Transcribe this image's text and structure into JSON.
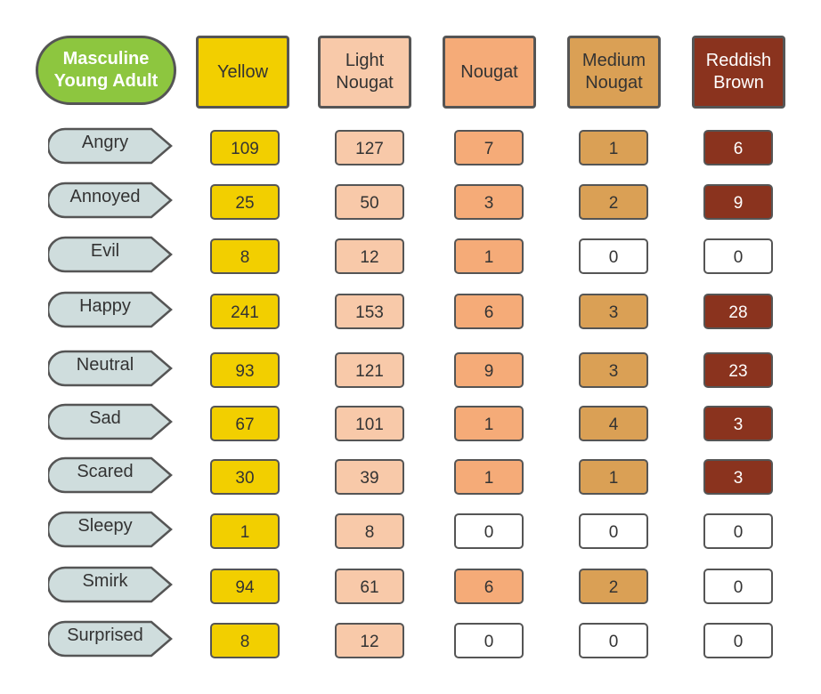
{
  "title": "Masculine\nYoung Adult",
  "columns": [
    {
      "label": "Yellow",
      "color": "#f2cf00",
      "dark_text": false
    },
    {
      "label": "Light\nNougat",
      "color": "#f8c9a9",
      "dark_text": false
    },
    {
      "label": "Nougat",
      "color": "#f5ab78",
      "dark_text": false
    },
    {
      "label": "Medium\nNougat",
      "color": "#daa055",
      "dark_text": false
    },
    {
      "label": "Reddish\nBrown",
      "color": "#8a331e",
      "dark_text": true
    }
  ],
  "zero_color": "#ffffff",
  "label_color": "#cfdddd",
  "rows": [
    {
      "label": "Angry",
      "values": [
        "109",
        "127",
        "7",
        "1",
        "6"
      ]
    },
    {
      "label": "Annoyed",
      "values": [
        "25",
        "50",
        "3",
        "2",
        "9"
      ]
    },
    {
      "label": "Evil",
      "values": [
        "8",
        "12",
        "1",
        "0",
        "0"
      ]
    },
    {
      "label": "Happy",
      "values": [
        "241",
        "153",
        "6",
        "3",
        "28"
      ]
    },
    {
      "label": "Neutral",
      "values": [
        "93",
        "121",
        "9",
        "3",
        "23"
      ]
    },
    {
      "label": "Sad",
      "values": [
        "67",
        "101",
        "1",
        "4",
        "3"
      ]
    },
    {
      "label": "Scared",
      "values": [
        "30",
        "39",
        "1",
        "1",
        "3"
      ]
    },
    {
      "label": "Sleepy",
      "values": [
        "1",
        "8",
        "0",
        "0",
        "0"
      ]
    },
    {
      "label": "Smirk",
      "values": [
        "94",
        "61",
        "6",
        "2",
        "0"
      ]
    },
    {
      "label": "Surprised",
      "values": [
        "8",
        "12",
        "0",
        "0",
        "0"
      ]
    }
  ]
}
